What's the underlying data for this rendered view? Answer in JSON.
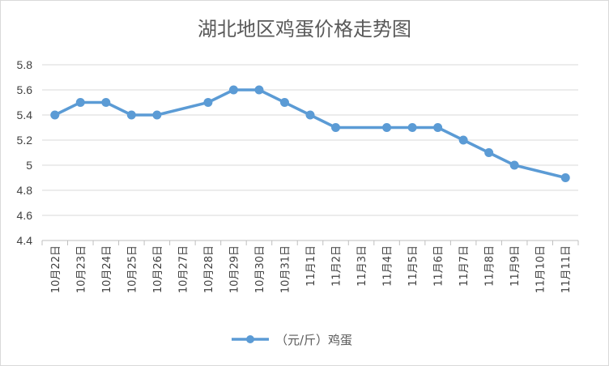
{
  "chart_data": {
    "type": "line",
    "title": "湖北地区鸡蛋价格走势图",
    "xlabel": "",
    "ylabel": "",
    "categories": [
      "10月22日",
      "10月23日",
      "10月24日",
      "10月25日",
      "10月26日",
      "10月27日",
      "10月28日",
      "10月29日",
      "10月30日",
      "10月31日",
      "11月1日",
      "11月2日",
      "11月3日",
      "11月4日",
      "11月5日",
      "11月6日",
      "11月7日",
      "11月8日",
      "11月9日",
      "11月10日",
      "11月11日"
    ],
    "series": [
      {
        "name": "（元/斤）鸡蛋",
        "values": [
          5.4,
          5.5,
          5.5,
          5.4,
          5.4,
          null,
          5.5,
          5.6,
          5.6,
          5.5,
          5.4,
          5.3,
          null,
          5.3,
          5.3,
          5.3,
          5.2,
          5.1,
          5.0,
          null,
          4.9
        ],
        "color": "#5b9bd5"
      }
    ],
    "ylim": [
      4.4,
      5.8
    ],
    "yticks": [
      "4.4",
      "4.6",
      "4.8",
      "5",
      "5.2",
      "5.4",
      "5.6",
      "5.8"
    ],
    "grid": true,
    "legend_position": "bottom"
  }
}
